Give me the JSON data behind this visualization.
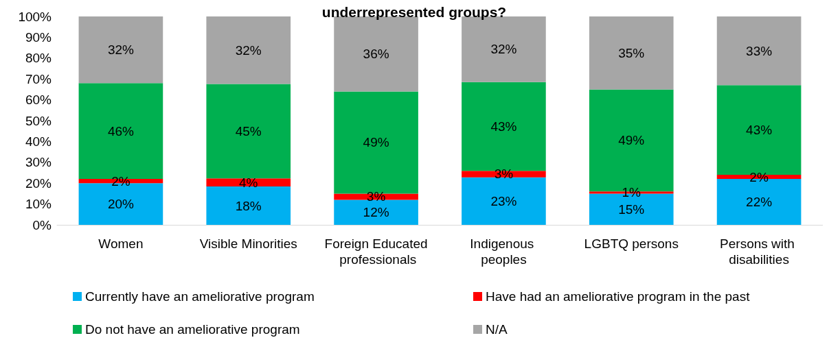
{
  "chart_data": {
    "type": "bar",
    "title": "underrepresented groups?",
    "stacked": true,
    "categories": [
      "Women",
      "Visible Minorities",
      "Foreign Educated professionals",
      "Indigenous peoples",
      "LGBTQ persons",
      "Persons with disabilities"
    ],
    "series": [
      {
        "name": "Currently have an ameliorative program",
        "color": "#00b0f0",
        "values": [
          20,
          18.4,
          12,
          22.8,
          15,
          22
        ],
        "value_labels": [
          "20%",
          "18%",
          "12%",
          "23%",
          "15%",
          "22%"
        ]
      },
      {
        "name": "Have had an ameliorative program in the past",
        "color": "#ff0000",
        "values": [
          2,
          3.9,
          3,
          3.1,
          1,
          2
        ],
        "value_labels": [
          "2%",
          "4%",
          "3%",
          "3%",
          "1%",
          "2%"
        ]
      },
      {
        "name": "Do not have an ameliorative program",
        "color": "#00b050",
        "values": [
          46,
          45.3,
          49,
          42.6,
          49,
          43
        ],
        "value_labels": [
          "46%",
          "45%",
          "49%",
          "43%",
          "49%",
          "43%"
        ]
      },
      {
        "name": "N/A",
        "color": "#a6a6a6",
        "values": [
          32,
          32.4,
          36,
          31.5,
          35,
          33
        ],
        "value_labels": [
          "32%",
          "32%",
          "36%",
          "32%",
          "35%",
          "33%"
        ]
      }
    ],
    "ylim": [
      0,
      100
    ],
    "yticks": [
      {
        "value": 0,
        "label": "0%"
      },
      {
        "value": 10,
        "label": "10%"
      },
      {
        "value": 20,
        "label": "20%"
      },
      {
        "value": 30,
        "label": "30%"
      },
      {
        "value": 40,
        "label": "40%"
      },
      {
        "value": 50,
        "label": "50%"
      },
      {
        "value": 60,
        "label": "60%"
      },
      {
        "value": 70,
        "label": "70%"
      },
      {
        "value": 80,
        "label": "80%"
      },
      {
        "value": 90,
        "label": "90%"
      },
      {
        "value": 100,
        "label": "100%"
      }
    ],
    "grid": false,
    "legend": "bottom"
  }
}
